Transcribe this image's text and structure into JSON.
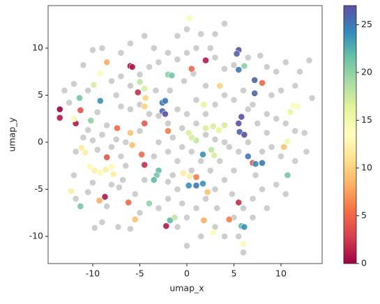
{
  "chart_data": {
    "type": "scatter",
    "xlabel": "umap_x",
    "ylabel": "umap_y",
    "xlim": [
      -14.74,
      14.37
    ],
    "ylim": [
      -12.89,
      14.52
    ],
    "xticks": [
      -10,
      -5,
      0,
      5,
      10
    ],
    "yticks": [
      -10,
      -5,
      0,
      5,
      10
    ],
    "colorbar": {
      "clim": [
        0,
        27
      ],
      "ticks": [
        0,
        5,
        10,
        15,
        20,
        25
      ],
      "cmap": "Spectral"
    },
    "series": [
      {
        "color": "#bdbdbd",
        "x": [
          -12,
          -11.8,
          -11,
          -10.5,
          -10,
          -9.5,
          -9,
          -8.5,
          -8,
          -7.5,
          -7,
          -6.5,
          -6.8,
          -7.2,
          -8,
          -10,
          -10.5,
          -9,
          -7.3,
          -6,
          -5,
          -3,
          -2,
          -1,
          -2,
          -3.5,
          -3,
          -2,
          -1,
          -1.5,
          -0.5,
          0,
          -1,
          -2,
          -3,
          -4,
          -5,
          -6,
          -7,
          -7.5,
          -8,
          -7,
          -6,
          -5,
          -4,
          -3,
          -2,
          -1,
          0,
          1,
          1.5,
          0,
          -1,
          -3.5,
          -4.5,
          -6,
          -7,
          -9,
          -10,
          -11,
          -12,
          -13,
          -12.5,
          -10.5,
          -9.5,
          3,
          4,
          2.5,
          3,
          4,
          5,
          6.5,
          7.8,
          8.5,
          9.5,
          10.5,
          12,
          13,
          11.5,
          10,
          9,
          8.5,
          9.5,
          10.5,
          11.5,
          12.5,
          13.3,
          12.7,
          11.5,
          10,
          9,
          8.5,
          7.5,
          6.5,
          5,
          4,
          3,
          2,
          1,
          0.5,
          -0.5,
          1.5,
          2.5,
          3.5,
          4.5,
          5.5,
          6.5,
          4,
          3,
          2,
          5,
          4,
          3,
          2,
          1,
          0,
          -1,
          0,
          1.5,
          3,
          4,
          5,
          6,
          7,
          8,
          9.5,
          10.5,
          8.5,
          7,
          6,
          5.5,
          -0.5,
          -1.5,
          0.5,
          1,
          2,
          -0.3,
          0.7,
          -1.8,
          -3.3,
          6,
          7,
          8,
          7.3,
          4.8,
          3.2,
          -5.5,
          -4.5,
          -8.5,
          -9.8,
          -11.8,
          -6.5,
          -5
        ],
        "y": [
          -3.5,
          -1,
          0.5,
          1.3,
          0.2,
          -0.8,
          0.8,
          1.8,
          -0.5,
          0.3,
          -1.5,
          -2.5,
          -4,
          -4.8,
          -4.5,
          -4.3,
          -5.3,
          -8.5,
          -9,
          -9.2,
          -7.5,
          -7,
          -6,
          -5,
          -4.2,
          -1.5,
          0,
          -1,
          -2,
          0.5,
          1.5,
          3,
          3.5,
          2,
          2.8,
          3,
          4,
          3.5,
          3.8,
          5,
          6.5,
          7,
          6,
          7.2,
          8,
          8.5,
          9.5,
          8.8,
          9.5,
          10,
          11.5,
          12,
          11.3,
          10,
          11.3,
          10.5,
          9.5,
          10,
          9.8,
          8.2,
          6.2,
          5.5,
          4.2,
          5.5,
          3.2,
          11.5,
          12.6,
          10,
          9,
          7.8,
          8.2,
          9,
          9.2,
          8,
          7.5,
          8.5,
          7.5,
          8.7,
          6,
          5.5,
          5,
          3,
          2.5,
          2,
          1.2,
          1,
          4.7,
          -1,
          -2,
          -1.5,
          -0.5,
          1,
          2,
          3.5,
          4.5,
          5,
          4,
          3,
          2,
          -1,
          -0.5,
          -2,
          -3,
          -2,
          -0.5,
          -1,
          0,
          0,
          0.3,
          0.8,
          -3,
          -4,
          -5,
          -6,
          -7,
          -8,
          -9,
          -11,
          -10,
          -9,
          -10,
          -8,
          -7,
          -6,
          -5,
          -4.5,
          -5.5,
          -7,
          -8,
          -11.7,
          -10,
          -6.5,
          -3.5,
          -3,
          4.5,
          6,
          6.5,
          7.3,
          5.5,
          5.5,
          5.5,
          4,
          -1,
          -3.5,
          -5.5,
          -7,
          -5.5,
          -4,
          -6.8,
          -9.1,
          -6,
          0,
          1.2
        ]
      },
      {
        "x": [
          -13.5,
          -13.5,
          -11.8,
          -6,
          -5.8,
          -2.2,
          -4.5,
          -8.7,
          -5.2,
          2,
          5.5,
          -11.3,
          -6.2,
          -4.5,
          0.5,
          4.5,
          8,
          7,
          -4.8,
          1,
          -7.4,
          -8.5,
          -2,
          -8.5,
          -9.3,
          -6,
          -5.8,
          -4.5,
          -5.5,
          1.8,
          2.2,
          3.5,
          10.3,
          -4.4,
          -11.2,
          -10.8,
          -10.3,
          -9.8,
          -9.2,
          -8.6,
          -8,
          -7.8,
          -12,
          -12.3,
          11.3,
          11.8,
          6,
          -9.2,
          -0.4,
          0.3,
          2.8,
          0.3,
          2,
          2.8,
          3.4,
          4,
          2.6,
          2.9,
          1,
          0.5,
          -9.9,
          -5,
          -4.5,
          1.8,
          -1.3,
          11,
          10.7,
          0.2,
          -2,
          -1.6,
          -11.4,
          -10.2,
          -3,
          -3.2,
          -3.5,
          -11.3,
          -4,
          10.7,
          6.1,
          -1.8,
          5.8,
          -9.2,
          1,
          0.2,
          1.7,
          6.1,
          6.5,
          7.3,
          5.5,
          1.7,
          8,
          -2.6,
          -2.3,
          -2.6,
          -2.3,
          5.5,
          5.3,
          5.8,
          5.6,
          6.1,
          7.2,
          7.2,
          5.5
        ],
        "y": [
          3.5,
          2.6,
          2,
          8.1,
          8,
          -8.9,
          -2.4,
          -5.8,
          5.3,
          8.7,
          -6.4,
          3.4,
          -6.4,
          2,
          7.8,
          -8.2,
          6.3,
          -2.2,
          -1.3,
          -3.7,
          1.5,
          -1.6,
          1.2,
          8.5,
          -6.2,
          1,
          -0.3,
          3.8,
          -8.2,
          -8.3,
          -5.3,
          6,
          -0.5,
          4.7,
          -0.6,
          -1.1,
          -2.6,
          -3,
          -3.2,
          -2.9,
          -2.6,
          -3.4,
          2.5,
          -5.2,
          3.9,
          3.8,
          -10.8,
          7.3,
          -3.3,
          -3.6,
          -9.6,
          13.2,
          1.5,
          1.7,
          1.3,
          1.8,
          -0.8,
          -1.4,
          0.2,
          0.5,
          6.1,
          6.4,
          5.7,
          4,
          -8,
          3.2,
          0.1,
          1,
          7.2,
          7.1,
          4.7,
          2.3,
          -3,
          -3.5,
          -4,
          -6.8,
          -6.5,
          -3.5,
          8.1,
          -8.3,
          -8.9,
          4.4,
          -4.6,
          -4.6,
          -4.4,
          -9,
          -1.5,
          -2.3,
          7.7,
          -1.3,
          -2.2,
          4.2,
          4.4,
          3.3,
          3,
          9.8,
          9.4,
          2.7,
          1.1,
          0.8,
          6.6,
          5.2,
          2
        ],
        "c": [
          0,
          1,
          1,
          0,
          1,
          1,
          2,
          1,
          2,
          1,
          2,
          4,
          5,
          4,
          5,
          6,
          5,
          4,
          5,
          6,
          5,
          4,
          6,
          8,
          8,
          9,
          9,
          10,
          9,
          8,
          9,
          10,
          9,
          10,
          12,
          12,
          13,
          12,
          13,
          12,
          13,
          12,
          13,
          12,
          14,
          14,
          13,
          14,
          12,
          12,
          13,
          14,
          17,
          17,
          16,
          17,
          18,
          17,
          18,
          17,
          17,
          18,
          17,
          16,
          18,
          16,
          15,
          17,
          20,
          21,
          21,
          20,
          22,
          21,
          22,
          21,
          20,
          21,
          20,
          22,
          22,
          24,
          25,
          24,
          24,
          24,
          25,
          24,
          25,
          24,
          25,
          25,
          25,
          26,
          27,
          27,
          26,
          27,
          26,
          27,
          26,
          26,
          27
        ]
      }
    ]
  }
}
